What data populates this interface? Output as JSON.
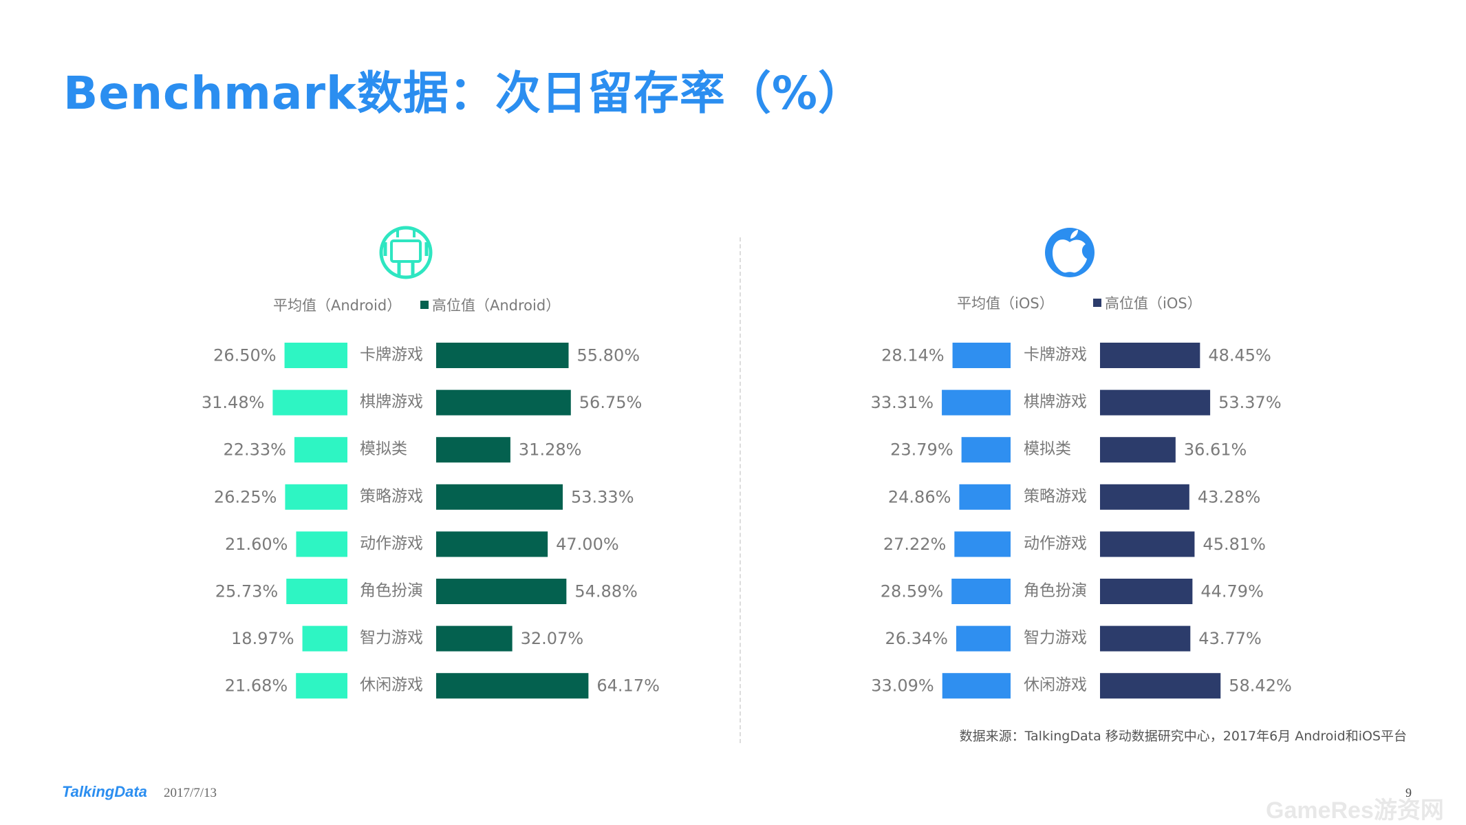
{
  "title": "Benchmark数据：次日留存率（%）",
  "source_note": "数据来源：TalkingData 移动数据研究中心，2017年6月 Android和iOS平台",
  "footer": {
    "logo": "TalkingData",
    "date": "2017/7/13",
    "page": "9"
  },
  "watermark": "GameRes游资网",
  "colors": {
    "title": "#2b8ef0",
    "android_avg": "#2ef5c3",
    "android_high": "#04614f",
    "ios_avg": "#2f8ff0",
    "ios_high": "#2c3c6b",
    "android_icon": "#2ee6c1",
    "ios_icon": "#2b8ef0"
  },
  "chart_data": [
    {
      "type": "bar",
      "platform_icon": "android-icon",
      "categories": [
        "卡牌游戏",
        "棋牌游戏",
        "模拟类",
        "策略游戏",
        "动作游戏",
        "角色扮演",
        "智力游戏",
        "休闲游戏"
      ],
      "series": [
        {
          "name": "平均值（Android）",
          "values": [
            26.5,
            31.48,
            22.33,
            26.25,
            21.6,
            25.73,
            18.97,
            21.68
          ],
          "labels": [
            "26.50%",
            "31.48%",
            "22.33%",
            "26.25%",
            "21.60%",
            "25.73%",
            "18.97%",
            "21.68%"
          ]
        },
        {
          "name": "高位值（Android）",
          "values": [
            55.8,
            56.75,
            31.28,
            53.33,
            47.0,
            54.88,
            32.07,
            64.17
          ],
          "labels": [
            "55.80%",
            "56.75%",
            "31.28%",
            "53.33%",
            "47.00%",
            "54.88%",
            "32.07%",
            "64.17%"
          ]
        }
      ],
      "legend_position": "top"
    },
    {
      "type": "bar",
      "platform_icon": "apple-icon",
      "categories": [
        "卡牌游戏",
        "棋牌游戏",
        "模拟类",
        "策略游戏",
        "动作游戏",
        "角色扮演",
        "智力游戏",
        "休闲游戏"
      ],
      "series": [
        {
          "name": "平均值（iOS）",
          "values": [
            28.14,
            33.31,
            23.79,
            24.86,
            27.22,
            28.59,
            26.34,
            33.09
          ],
          "labels": [
            "28.14%",
            "33.31%",
            "23.79%",
            "24.86%",
            "27.22%",
            "28.59%",
            "26.34%",
            "33.09%"
          ]
        },
        {
          "name": "高位值（iOS）",
          "values": [
            48.45,
            53.37,
            36.61,
            43.28,
            45.81,
            44.79,
            43.77,
            58.42
          ],
          "labels": [
            "48.45%",
            "53.37%",
            "36.61%",
            "43.28%",
            "45.81%",
            "44.79%",
            "43.77%",
            "58.42%"
          ]
        }
      ],
      "legend_position": "top"
    }
  ]
}
